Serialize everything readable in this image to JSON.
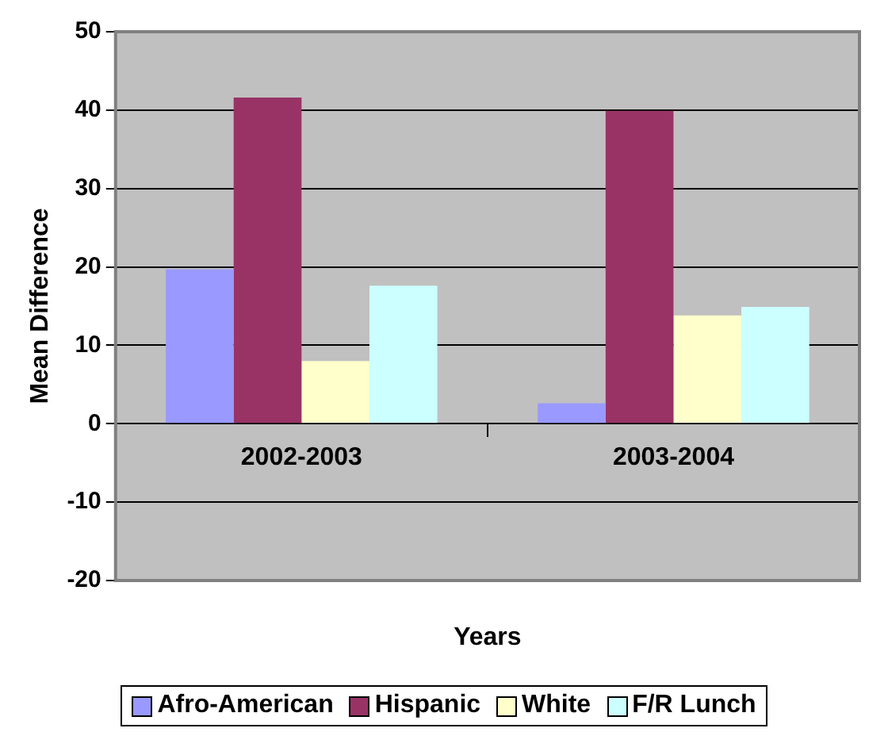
{
  "chart_data": {
    "type": "bar",
    "xlabel": "Years",
    "ylabel": "Mean Difference",
    "categories": [
      "2002-2003",
      "2003-2004"
    ],
    "series": [
      {
        "name": "Afro-American",
        "color": "#9999ff",
        "values": [
          19.7,
          2.6
        ]
      },
      {
        "name": "Hispanic",
        "color": "#993366",
        "values": [
          41.6,
          39.9
        ]
      },
      {
        "name": "White",
        "color": "#ffffcc",
        "values": [
          8.0,
          13.8
        ]
      },
      {
        "name": "F/R Lunch",
        "color": "#ccffff",
        "values": [
          17.6,
          14.9
        ]
      }
    ],
    "ylim": [
      -20,
      50
    ],
    "yticks": [
      -20,
      -10,
      0,
      10,
      20,
      30,
      40,
      50
    ],
    "grid": "y",
    "legend": "bottom"
  }
}
